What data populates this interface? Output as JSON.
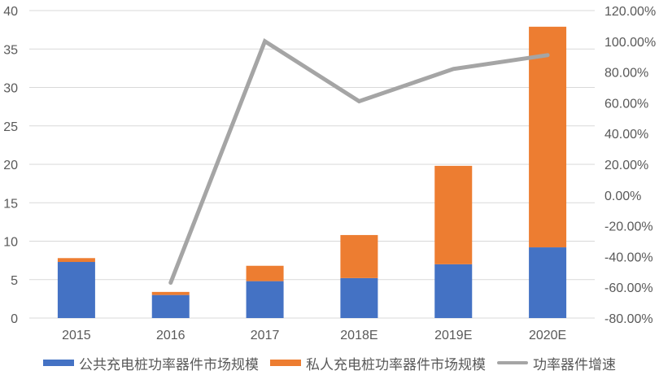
{
  "chart_data": {
    "type": "bar",
    "subtype": "stacked bar + line (dual axis)",
    "title": "",
    "categories": [
      "2015",
      "2016",
      "2017",
      "2018E",
      "2019E",
      "2020E"
    ],
    "series": [
      {
        "name": "公共充电桩功率器件市场规模",
        "type": "bar",
        "axis": "left",
        "color": "#4472C4",
        "values": [
          7.3,
          3.0,
          4.8,
          5.2,
          7.0,
          9.2
        ]
      },
      {
        "name": "私人充电桩功率器件市场规模",
        "type": "bar",
        "axis": "left",
        "color": "#ED7D31",
        "values": [
          0.5,
          0.4,
          2.0,
          5.6,
          12.8,
          28.7
        ]
      },
      {
        "name": "功率器件增速",
        "type": "line",
        "axis": "right",
        "color": "#A5A5A5",
        "values": [
          null,
          -57,
          100,
          61,
          82,
          91
        ],
        "unit": "%"
      }
    ],
    "left_axis": {
      "min": 0,
      "max": 40,
      "step": 5,
      "ticks": [
        "0",
        "5",
        "10",
        "15",
        "20",
        "25",
        "30",
        "35",
        "40"
      ]
    },
    "right_axis": {
      "min": -80,
      "max": 120,
      "step": 20,
      "ticks": [
        "-80.00%",
        "-60.00%",
        "-40.00%",
        "-20.00%",
        "0.00%",
        "20.00%",
        "40.00%",
        "60.00%",
        "80.00%",
        "100.00%",
        "120.00%"
      ]
    },
    "xlabel": "",
    "ylabel": "",
    "ylim": [
      0,
      40
    ],
    "y2lim": [
      -0.8,
      1.2
    ],
    "grid": true,
    "legend_position": "bottom"
  },
  "legend": [
    {
      "label": "公共充电桩功率器件市场规模",
      "color": "#4472C4",
      "kind": "bar"
    },
    {
      "label": "私人充电桩功率器件市场规模",
      "color": "#ED7D31",
      "kind": "bar"
    },
    {
      "label": "功率器件增速",
      "color": "#A5A5A5",
      "kind": "line"
    }
  ]
}
